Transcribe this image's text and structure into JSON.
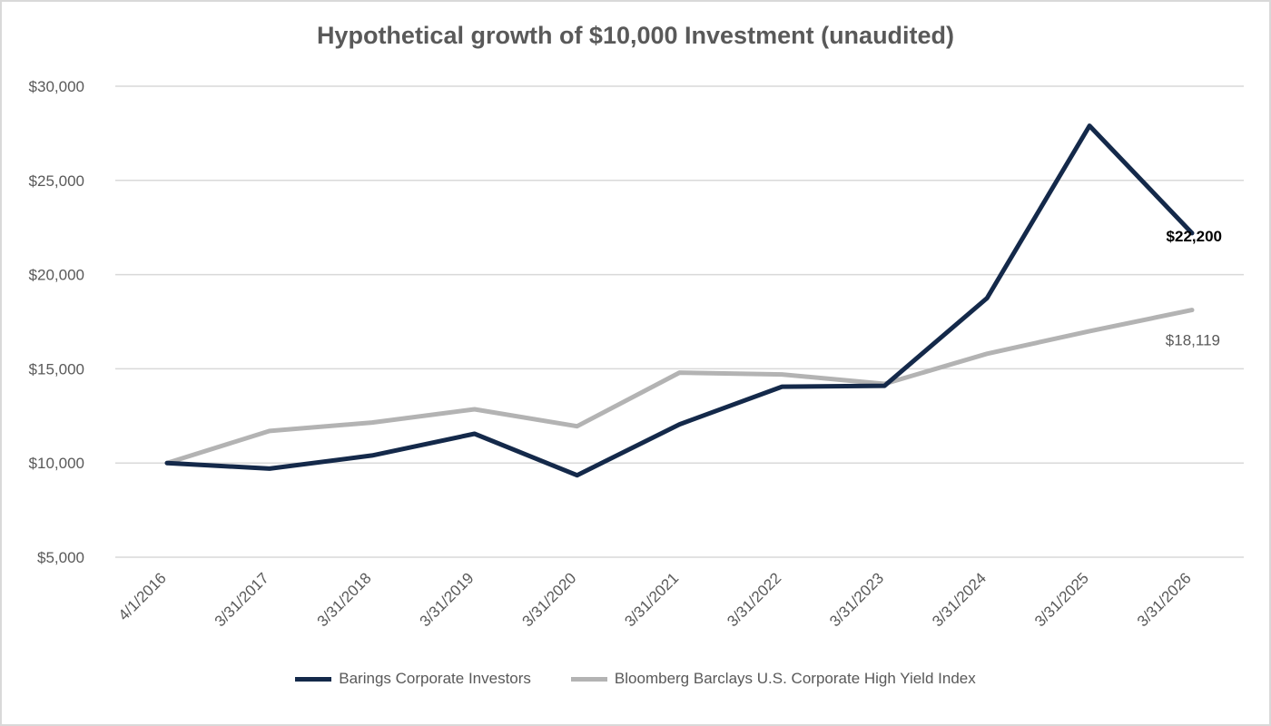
{
  "chart_data": {
    "type": "line",
    "title": "Hypothetical growth of $10,000 Investment (unaudited)",
    "xlabel": "",
    "ylabel": "",
    "categories": [
      "4/1/2016",
      "3/31/2017",
      "3/31/2018",
      "3/31/2019",
      "3/31/2020",
      "3/31/2021",
      "3/31/2022",
      "3/31/2023",
      "3/31/2024",
      "3/31/2025",
      "3/31/2026"
    ],
    "ylim": [
      5000,
      30000
    ],
    "yticks": [
      5000,
      10000,
      15000,
      20000,
      25000,
      30000
    ],
    "ytick_labels": [
      "$5,000",
      "$10,000",
      "$15,000",
      "$20,000",
      "$25,000",
      "$30,000"
    ],
    "grid": true,
    "legend_position": "bottom",
    "series": [
      {
        "name": "Barings Corporate Investors",
        "color": "#14294a",
        "values": [
          10000,
          9700,
          10400,
          11550,
          9350,
          12050,
          14050,
          14100,
          18750,
          27900,
          22200
        ],
        "end_label": "$22,200"
      },
      {
        "name": "Bloomberg Barclays U.S. Corporate High Yield Index",
        "color": "#b3b3b3",
        "values": [
          10000,
          11700,
          12150,
          12850,
          11950,
          14800,
          14700,
          14200,
          15800,
          17000,
          18119
        ],
        "end_label": "$18,119"
      }
    ]
  }
}
